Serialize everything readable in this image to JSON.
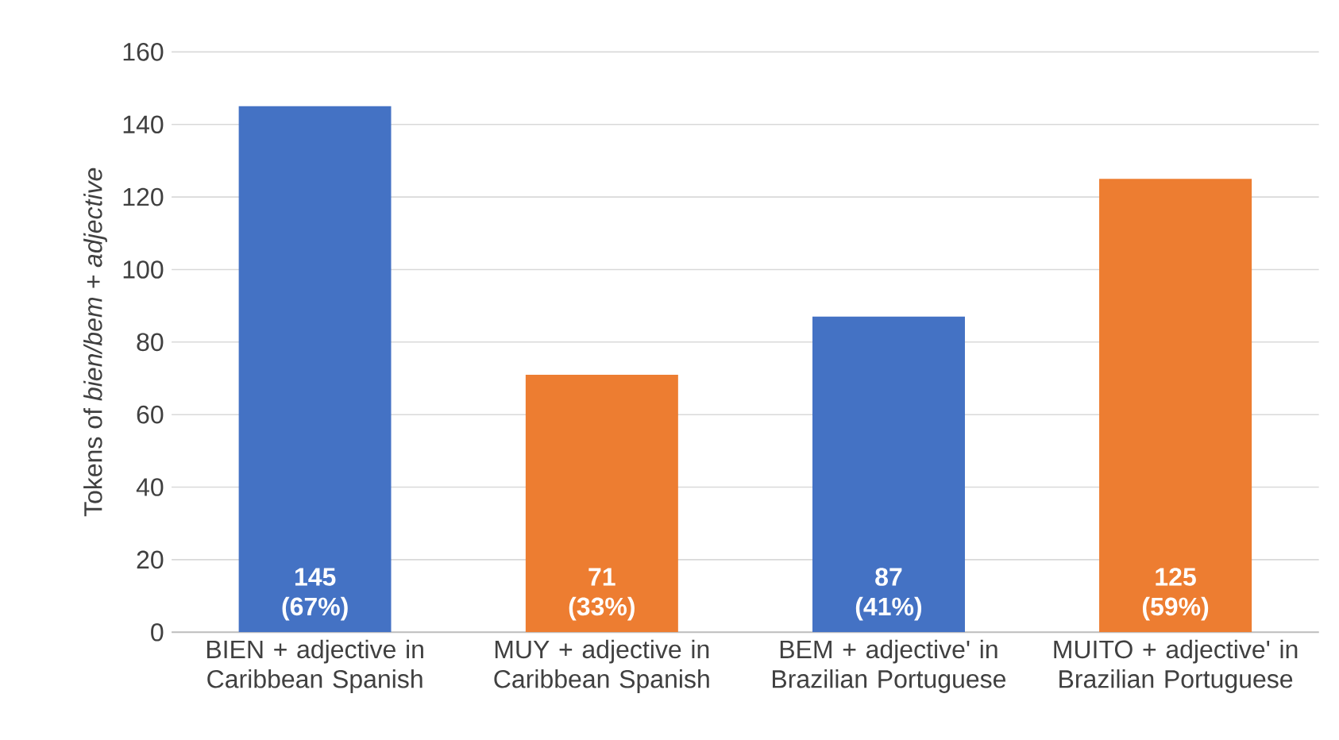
{
  "chart_data": {
    "type": "bar",
    "ylabel": "Tokens of *bien/bem + adjective*",
    "categories": [
      "BIEN + adjective in Caribbean Spanish",
      "MUY + adjective in Caribbean Spanish",
      "BEM + adjective' in Brazilian Portuguese",
      "MUITO + adjective' in Brazilian Portuguese"
    ],
    "values": [
      145,
      71,
      87,
      125
    ],
    "colors": [
      "#4472c4",
      "#ed7d31",
      "#4472c4",
      "#ed7d31"
    ],
    "value_labels": [
      "145 (67%)",
      "71 (33%)",
      "87 (41%)",
      "125 (59%)"
    ],
    "ylim": [
      0,
      160
    ],
    "yticks": [
      0,
      20,
      40,
      60,
      80,
      100,
      120,
      140,
      160
    ],
    "grid": "y"
  }
}
